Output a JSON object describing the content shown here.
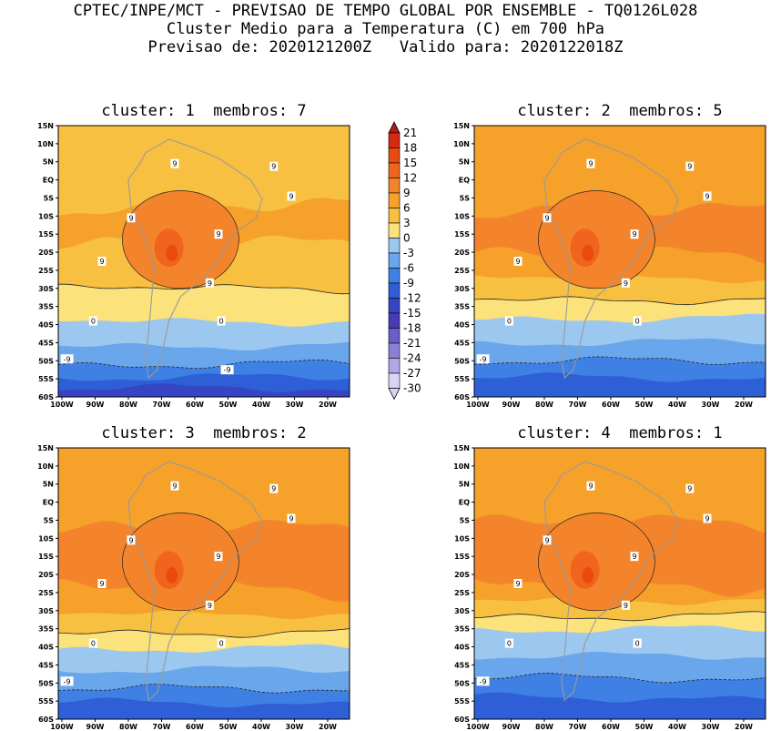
{
  "header": {
    "line1": "CPTEC/INPE/MCT - PREVISAO DE TEMPO GLOBAL POR ENSEMBLE - TQ0126L028",
    "line2": "Cluster Medio para a Temperatura (C) em 700 hPa",
    "line3": "Previsao de: 2020121200Z   Valido para: 2020122018Z"
  },
  "panels": [
    {
      "title": "cluster: 1  membros: 7"
    },
    {
      "title": "cluster: 2  membros: 5"
    },
    {
      "title": "cluster: 3  membros: 2"
    },
    {
      "title": "cluster: 4  membros: 1"
    }
  ],
  "lat_labels": [
    "15N",
    "10N",
    "5N",
    "EQ",
    "5S",
    "10S",
    "15S",
    "20S",
    "25S",
    "30S",
    "35S",
    "40S",
    "45S",
    "50S",
    "55S",
    "60S"
  ],
  "lon_labels": [
    "100W",
    "90W",
    "80W",
    "70W",
    "60W",
    "50W",
    "40W",
    "30W",
    "20W"
  ],
  "colorbar": {
    "levels": [
      "21",
      "18",
      "15",
      "12",
      "9",
      "6",
      "3",
      "0",
      "-3",
      "-6",
      "-9",
      "-12",
      "-15",
      "-18",
      "-21",
      "-24",
      "-27",
      "-30"
    ],
    "colors": [
      "#b01a1a",
      "#d62a12",
      "#ea4a10",
      "#f0641e",
      "#f3842c",
      "#f5a12a",
      "#f8c040",
      "#fbe27a",
      "#9cc8f0",
      "#6aa6ec",
      "#3f80e4",
      "#2e5fd6",
      "#3645c4",
      "#4a3ab6",
      "#6a5ec8",
      "#8a80d8",
      "#b0a8e6",
      "#d8d4f4"
    ]
  },
  "contour_labels": {
    "p1": [
      "9",
      "9",
      "9",
      "9",
      "9",
      "9",
      "9",
      "0",
      "0",
      "-9",
      "-9"
    ],
    "p2": [
      "9",
      "9",
      "9",
      "9",
      "9",
      "9",
      "9",
      "0",
      "0",
      "-9"
    ],
    "p3": [
      "9",
      "9",
      "9",
      "9",
      "9",
      "9",
      "9",
      "0",
      "0",
      "-9"
    ],
    "p4": [
      "9",
      "9",
      "9",
      "9",
      "9",
      "9",
      "9",
      "0",
      "0",
      "-9"
    ]
  }
}
